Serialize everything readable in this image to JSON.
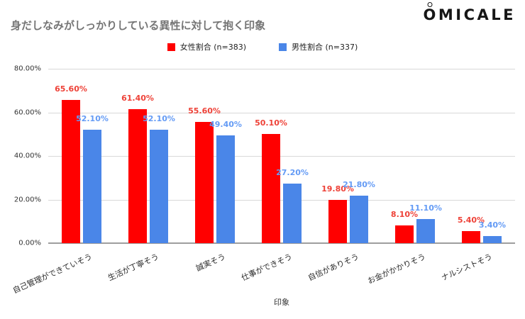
{
  "brand": {
    "logo_text": "OMICALE"
  },
  "title": "身だしなみがしっかりしている異性に対して抱く印象",
  "chart_data": {
    "type": "bar",
    "title": "身だしなみがしっかりしている異性に対して抱く印象",
    "categories": [
      "自己管理ができていそう",
      "生活が丁寧そう",
      "誠実そう",
      "仕事ができそう",
      "自信がありそう",
      "お金がかかりそう",
      "ナルシストそう"
    ],
    "series": [
      {
        "name": "女性割合 (n=383)",
        "color": "#ff0000",
        "label_color": "#ee4238",
        "values": [
          65.6,
          61.4,
          55.6,
          50.1,
          19.8,
          8.1,
          5.4
        ],
        "labels": [
          "65.60%",
          "61.40%",
          "55.60%",
          "50.10%",
          "19.80%",
          "8.10%",
          "5.40%"
        ]
      },
      {
        "name": "男性割合 (n=337)",
        "color": "#4a86e8",
        "label_color": "#649bf5",
        "values": [
          52.1,
          52.1,
          49.4,
          27.2,
          21.8,
          11.1,
          3.4
        ],
        "labels": [
          "52.10%",
          "52.10%",
          "49.40%",
          "27.20%",
          "21.80%",
          "11.10%",
          "3.40%"
        ]
      }
    ],
    "xlabel": "印象",
    "ylabel": "",
    "ylim": [
      0,
      80
    ],
    "ytick_labels": [
      "80.00%",
      "60.00%",
      "40.00%",
      "20.00%",
      "0.00%"
    ],
    "grid": true,
    "legend_position": "top"
  }
}
